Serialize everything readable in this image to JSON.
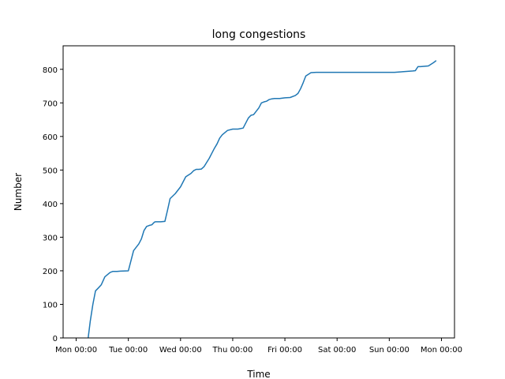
{
  "chart_data": {
    "type": "line",
    "title": "long congestions",
    "xlabel": "Time",
    "ylabel": "Number",
    "xlim": [
      -0.25,
      7.25
    ],
    "ylim": [
      0,
      870
    ],
    "x_unit": "days",
    "xticks": [
      {
        "value": 0,
        "label": "Mon 00:00"
      },
      {
        "value": 1,
        "label": "Tue 00:00"
      },
      {
        "value": 2,
        "label": "Wed 00:00"
      },
      {
        "value": 3,
        "label": "Thu 00:00"
      },
      {
        "value": 4,
        "label": "Fri 00:00"
      },
      {
        "value": 5,
        "label": "Sat 00:00"
      },
      {
        "value": 6,
        "label": "Sun 00:00"
      },
      {
        "value": 7,
        "label": "Mon 00:00"
      }
    ],
    "yticks": [
      0,
      100,
      200,
      300,
      400,
      500,
      600,
      700,
      800
    ],
    "grid": false,
    "color": "#1f77b4",
    "series": [
      {
        "x": [
          0.23,
          0.27,
          0.32,
          0.37,
          0.42,
          0.48,
          0.55,
          0.65,
          0.7,
          0.75,
          0.78,
          0.85,
          1.0,
          1.1,
          1.2,
          1.25,
          1.3,
          1.35,
          1.4,
          1.45,
          1.5,
          1.52,
          1.58,
          1.62,
          1.7,
          1.75,
          1.8,
          1.9,
          2.0,
          2.1,
          2.2,
          2.25,
          2.3,
          2.35,
          2.4,
          2.45,
          2.55,
          2.6,
          2.65,
          2.7,
          2.75,
          2.8,
          2.9,
          3.0,
          3.1,
          3.2,
          3.3,
          3.35,
          3.4,
          3.45,
          3.5,
          3.55,
          3.6,
          3.65,
          3.7,
          3.75,
          3.8,
          3.9,
          4.0,
          4.1,
          4.2,
          4.25,
          4.3,
          4.35,
          4.4,
          4.5,
          4.6,
          4.65,
          4.7,
          4.75,
          4.8,
          4.9,
          5.0,
          5.1,
          5.2,
          5.25,
          5.3,
          5.35,
          5.4,
          5.45,
          5.5,
          5.55,
          5.6,
          5.65,
          5.7,
          5.75,
          5.8,
          5.9,
          6.0,
          6.1,
          6.2,
          6.35,
          6.45,
          6.5,
          6.55,
          6.6,
          6.75,
          6.85,
          6.9
        ],
        "y": [
          0,
          50,
          100,
          140,
          148,
          158,
          182,
          195,
          198,
          198,
          198,
          199,
          200,
          260,
          280,
          295,
          320,
          332,
          335,
          337,
          345,
          346,
          346,
          346,
          347,
          380,
          415,
          430,
          450,
          480,
          490,
          498,
          502,
          502,
          503,
          510,
          535,
          550,
          565,
          578,
          595,
          605,
          618,
          622,
          622,
          625,
          655,
          663,
          665,
          675,
          685,
          700,
          703,
          705,
          710,
          712,
          713,
          713,
          715,
          716,
          722,
          728,
          742,
          760,
          780,
          790,
          791,
          791,
          791,
          791,
          791,
          791,
          791,
          791,
          791,
          791,
          791,
          791,
          791,
          791,
          791,
          791,
          791,
          791,
          791,
          791,
          791,
          791,
          791,
          791,
          792,
          794,
          795,
          796,
          808,
          808,
          810,
          820,
          826
        ]
      }
    ]
  }
}
